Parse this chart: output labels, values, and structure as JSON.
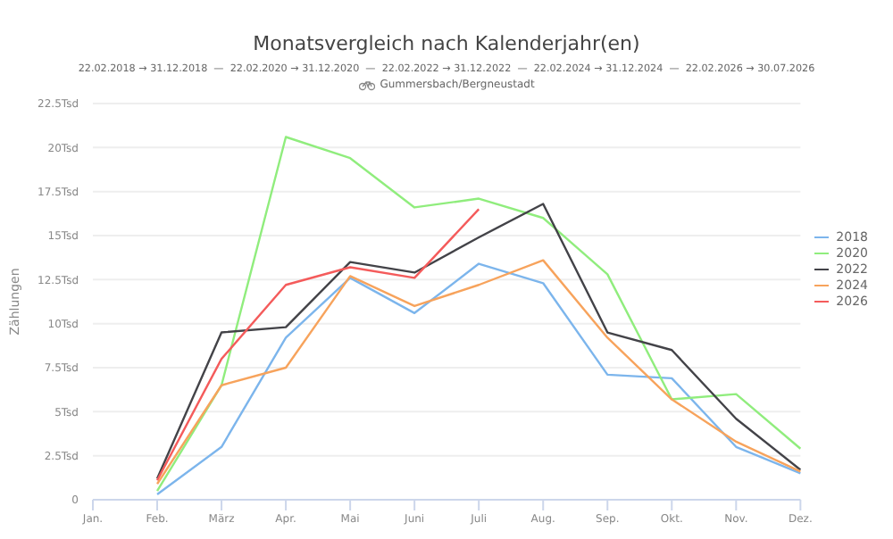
{
  "chart_data": {
    "type": "line",
    "title": "Monatsvergleich nach Kalenderjahr(en)",
    "subtitle": "22.02.2018 → 31.12.2018  —  22.02.2020 → 31.12.2020  —  22.02.2022 → 31.12.2022  —  22.02.2024 → 31.12.2024  —  22.02.2026 → 30.07.2026",
    "annotations": [
      "Gummersbach/Bergneustadt"
    ],
    "ylabel": "Zählungen",
    "categories": [
      "Jan.",
      "Feb.",
      "März",
      "Apr.",
      "Mai",
      "Juni",
      "Juli",
      "Aug.",
      "Sep.",
      "Okt.",
      "Nov.",
      "Dez."
    ],
    "series": [
      {
        "name": "2018",
        "color": "#7cb5ec",
        "values": [
          null,
          0.3,
          3.0,
          9.2,
          12.6,
          10.6,
          13.4,
          12.3,
          7.1,
          6.9,
          3.0,
          1.5
        ]
      },
      {
        "name": "2020",
        "color": "#90ed7d",
        "values": [
          null,
          0.5,
          6.5,
          20.6,
          19.4,
          16.6,
          17.1,
          16.0,
          12.8,
          5.7,
          6.0,
          2.9
        ]
      },
      {
        "name": "2022",
        "color": "#434348",
        "values": [
          null,
          1.2,
          9.5,
          9.8,
          13.5,
          12.9,
          14.9,
          16.8,
          9.5,
          8.5,
          4.6,
          1.7
        ]
      },
      {
        "name": "2024",
        "color": "#f7a35c",
        "values": [
          null,
          0.9,
          6.5,
          7.5,
          12.7,
          11.0,
          12.2,
          13.6,
          9.2,
          5.7,
          3.3,
          1.6
        ]
      },
      {
        "name": "2026",
        "color": "#f45b5b",
        "values": [
          null,
          1.1,
          8.0,
          12.2,
          13.2,
          12.6,
          16.5,
          null,
          null,
          null,
          null,
          null
        ]
      }
    ],
    "ylim": [
      0,
      22.5
    ],
    "yticks": [
      0,
      {
        "value": 2.5,
        "label": "2.5Tsd"
      },
      {
        "value": 5,
        "label": "5Tsd"
      },
      {
        "value": 7.5,
        "label": "7.5Tsd"
      },
      {
        "value": 10,
        "label": "10Tsd"
      },
      {
        "value": 12.5,
        "label": "12.5Tsd"
      },
      {
        "value": 15,
        "label": "15Tsd"
      },
      {
        "value": 17.5,
        "label": "17.5Tsd"
      },
      {
        "value": 20,
        "label": "20Tsd"
      },
      {
        "value": 22.5,
        "label": "22.5Tsd"
      }
    ],
    "grid": "y",
    "legend": "right",
    "marker": "none",
    "line_style": "solid"
  }
}
